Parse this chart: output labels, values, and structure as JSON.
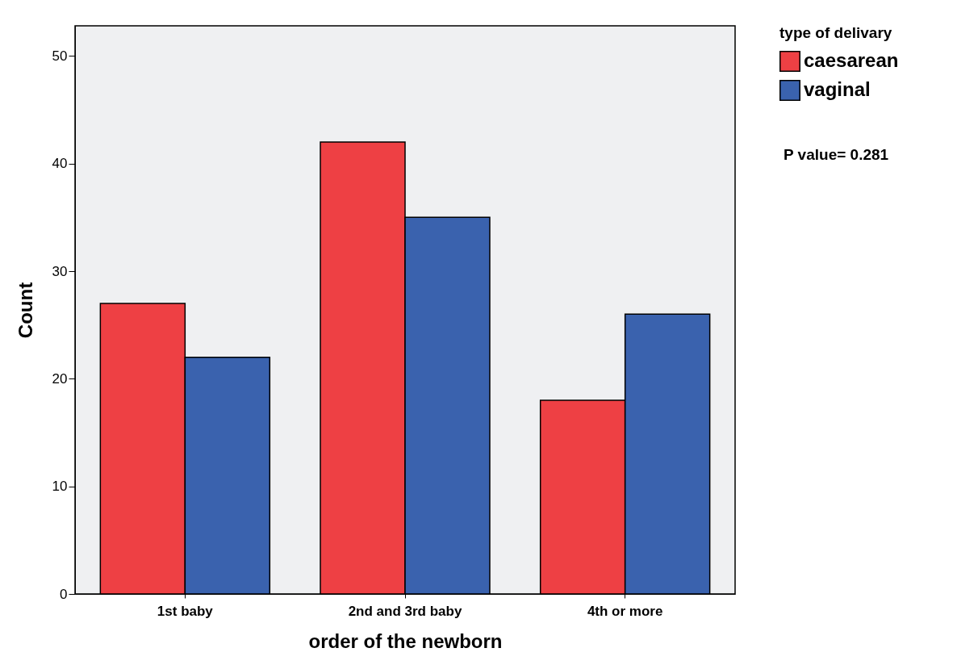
{
  "chart_data": {
    "type": "bar",
    "xlabel": "order of the newborn",
    "ylabel": "Count",
    "legend_title": "type of delivary",
    "categories": [
      "1st baby",
      "2nd and 3rd baby",
      "4th or more"
    ],
    "series": [
      {
        "name": "caesarean",
        "color": "#ee4044",
        "values": [
          27,
          42,
          18
        ]
      },
      {
        "name": "vaginal",
        "color": "#3a62ae",
        "values": [
          22,
          35,
          26
        ]
      }
    ],
    "ylim": [
      0,
      52.8
    ],
    "yticks": [
      0,
      10,
      20,
      30,
      40,
      50
    ],
    "grid": false,
    "legend": "top right",
    "annotations": [
      "P value= 0.281"
    ]
  }
}
